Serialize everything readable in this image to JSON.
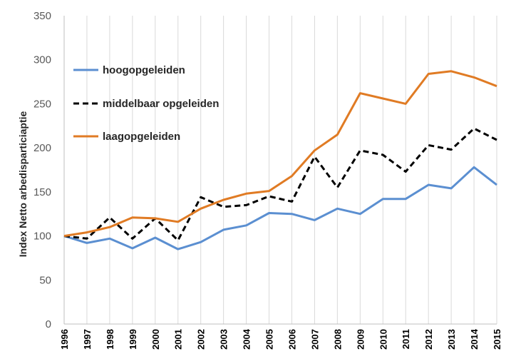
{
  "chart_data": {
    "type": "line",
    "title": "",
    "xlabel": "",
    "ylabel": "Index Netto arbedisparticiaptie",
    "ylim": [
      0,
      350
    ],
    "y_ticks": [
      0,
      50,
      100,
      150,
      200,
      250,
      300,
      350
    ],
    "grid": "vertical",
    "legend_position": "top-left",
    "categories": [
      "1996",
      "1997",
      "1998",
      "1999",
      "2000",
      "2001",
      "2002",
      "2003",
      "2004",
      "2005",
      "2006",
      "2007",
      "2008",
      "2009",
      "2010",
      "2011",
      "2012",
      "2013",
      "2014",
      "2015"
    ],
    "series": [
      {
        "name": "hoogopgeleiden",
        "color": "#5b8fd1",
        "dash": "solid",
        "values": [
          100,
          92,
          97,
          86,
          98,
          85,
          93,
          107,
          112,
          126,
          125,
          118,
          131,
          125,
          142,
          142,
          158,
          154,
          178,
          158
        ]
      },
      {
        "name": "middelbaar opgeleiden",
        "color": "#000000",
        "dash": "dashed",
        "values": [
          100,
          97,
          121,
          97,
          120,
          95,
          144,
          133,
          135,
          145,
          139,
          190,
          155,
          197,
          192,
          173,
          203,
          198,
          222,
          209
        ]
      },
      {
        "name": "laagopgeleiden",
        "color": "#e07b24",
        "dash": "solid",
        "values": [
          100,
          104,
          110,
          121,
          120,
          116,
          131,
          141,
          148,
          151,
          168,
          197,
          215,
          262,
          256,
          250,
          284,
          287,
          280,
          270
        ]
      }
    ]
  }
}
